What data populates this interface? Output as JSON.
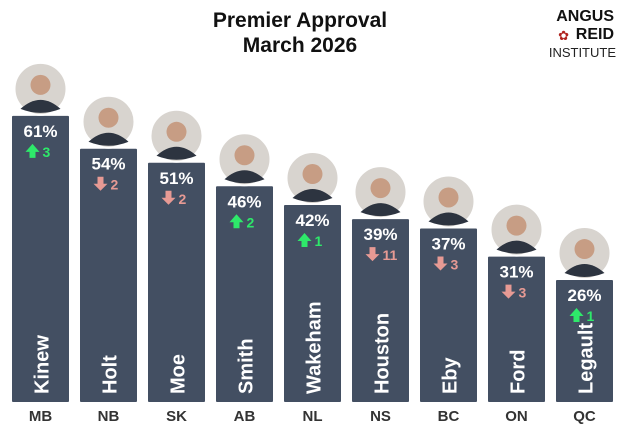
{
  "chart_data": {
    "type": "bar",
    "title": "Premier Approval",
    "subtitle": "March 2026",
    "categories": [
      "MB",
      "NB",
      "SK",
      "AB",
      "NL",
      "NS",
      "BC",
      "ON",
      "QC"
    ],
    "premiers": [
      "Kinew",
      "Holt",
      "Moe",
      "Smith",
      "Wakeham",
      "Houston",
      "Eby",
      "Ford",
      "Legault"
    ],
    "values": [
      61,
      54,
      51,
      46,
      42,
      39,
      37,
      31,
      26
    ],
    "value_labels": [
      "61%",
      "54%",
      "51%",
      "46%",
      "42%",
      "39%",
      "37%",
      "31%",
      "26%"
    ],
    "changes": [
      3,
      -2,
      -2,
      2,
      1,
      -11,
      -3,
      -3,
      1
    ],
    "change_labels": [
      "3",
      "2",
      "2",
      "2",
      "1",
      "11",
      "3",
      "3",
      "1"
    ],
    "ylim": [
      0,
      100
    ],
    "xlabel": "",
    "ylabel": "",
    "grid": false
  },
  "logo": {
    "line1": "ANGUS",
    "line2": "REID",
    "line3": "INSTITUTE"
  },
  "colors": {
    "bar": "#434f62",
    "up": "#2ee86a",
    "down": "#e79a94",
    "text": "#ffffff",
    "axis": "#333333",
    "leaf": "#b0231e"
  }
}
